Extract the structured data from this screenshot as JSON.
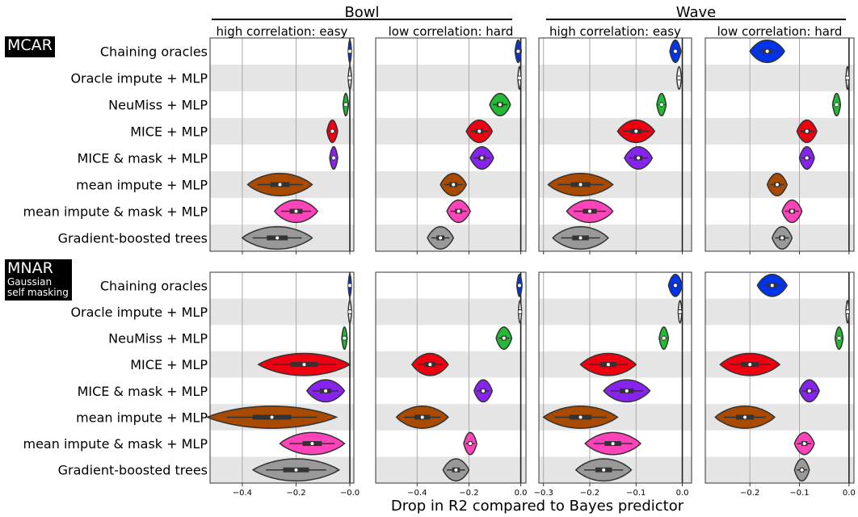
{
  "figure": {
    "xlabel": "Drop in R2 compared to Bayes predictor",
    "groups": [
      "Bowl",
      "Wave"
    ],
    "columns": [
      "high correlation: easy",
      "low correlation: hard",
      "high correlation: easy",
      "low correlation: hard"
    ],
    "rows": [
      "MCAR",
      "MNAR"
    ],
    "mnar_subtitle": [
      "Gaussian",
      "self masking"
    ]
  },
  "methods": [
    "Chaining oracles",
    "Oracle impute + MLP",
    "NeuMiss + MLP",
    "MICE + MLP",
    "MICE & mask + MLP",
    "mean impute + MLP",
    "mean impute & mask + MLP",
    "Gradient-boosted trees"
  ],
  "colors": [
    "#0033ee",
    "#ffffff",
    "#22bb33",
    "#ee0011",
    "#8822ee",
    "#a84a00",
    "#ff44bb",
    "#999999"
  ],
  "chart_data": [
    {
      "type": "violin",
      "row": "MCAR",
      "group": "Bowl",
      "subtitle": "high correlation: easy",
      "xlim": [
        -0.52,
        0.015
      ],
      "xticks": [
        -0.4,
        -0.2,
        -0.0
      ],
      "xticklabels": [
        "−0.4",
        "−0.2",
        "−0.0"
      ],
      "show_ticklabels": false,
      "series": [
        {
          "median": 0.0,
          "spread": 0.003
        },
        {
          "median": 0.0,
          "spread": 0.003
        },
        {
          "median": -0.015,
          "spread": 0.01
        },
        {
          "median": -0.065,
          "spread": 0.02
        },
        {
          "median": -0.06,
          "spread": 0.015
        },
        {
          "median": -0.26,
          "spread": 0.12
        },
        {
          "median": -0.2,
          "spread": 0.08
        },
        {
          "median": -0.27,
          "spread": 0.13
        }
      ]
    },
    {
      "type": "violin",
      "row": "MCAR",
      "group": "Bowl",
      "subtitle": "low correlation: hard",
      "xlim": [
        -0.56,
        0.02
      ],
      "xticks": [
        -0.4,
        -0.2,
        0.0
      ],
      "xticklabels": [
        "−0.4",
        "−0.2",
        "0.0"
      ],
      "show_ticklabels": false,
      "series": [
        {
          "median": -0.01,
          "spread": 0.012
        },
        {
          "median": -0.005,
          "spread": 0.005
        },
        {
          "median": -0.08,
          "spread": 0.04
        },
        {
          "median": -0.16,
          "spread": 0.05
        },
        {
          "median": -0.15,
          "spread": 0.045
        },
        {
          "median": -0.26,
          "spread": 0.05
        },
        {
          "median": -0.24,
          "spread": 0.045
        },
        {
          "median": -0.31,
          "spread": 0.05
        }
      ]
    },
    {
      "type": "violin",
      "row": "MCAR",
      "group": "Wave",
      "subtitle": "high correlation: easy",
      "xlim": [
        -0.31,
        0.02
      ],
      "xticks": [
        -0.3,
        -0.2,
        -0.1,
        0.0
      ],
      "xticklabels": [
        "−0.3",
        "−0.2",
        "−0.1",
        "0.0"
      ],
      "show_ticklabels": false,
      "series": [
        {
          "median": -0.015,
          "spread": 0.012
        },
        {
          "median": -0.007,
          "spread": 0.005
        },
        {
          "median": -0.045,
          "spread": 0.01
        },
        {
          "median": -0.1,
          "spread": 0.04
        },
        {
          "median": -0.095,
          "spread": 0.03
        },
        {
          "median": -0.22,
          "spread": 0.07
        },
        {
          "median": -0.2,
          "spread": 0.05
        },
        {
          "median": -0.22,
          "spread": 0.06
        }
      ]
    },
    {
      "type": "violin",
      "row": "MCAR",
      "group": "Wave",
      "subtitle": "low correlation: hard",
      "xlim": [
        -0.29,
        0.01
      ],
      "xticks": [
        -0.2,
        -0.1,
        0.0
      ],
      "xticklabels": [
        "−0.2",
        "−0.1",
        "0.0"
      ],
      "show_ticklabels": false,
      "series": [
        {
          "median": -0.165,
          "spread": 0.035
        },
        {
          "median": -0.003,
          "spread": 0.003
        },
        {
          "median": -0.025,
          "spread": 0.008
        },
        {
          "median": -0.085,
          "spread": 0.02
        },
        {
          "median": -0.085,
          "spread": 0.015
        },
        {
          "median": -0.145,
          "spread": 0.02
        },
        {
          "median": -0.115,
          "spread": 0.02
        },
        {
          "median": -0.135,
          "spread": 0.02
        }
      ]
    },
    {
      "type": "violin",
      "row": "MNAR",
      "group": "Bowl",
      "subtitle": "",
      "xlim": [
        -0.52,
        0.015
      ],
      "xticks": [
        -0.4,
        -0.2,
        -0.0
      ],
      "xticklabels": [
        "−0.4",
        "−0.2",
        "−0.0"
      ],
      "show_ticklabels": true,
      "series": [
        {
          "median": 0.0,
          "spread": 0.003
        },
        {
          "median": 0.0,
          "spread": 0.003
        },
        {
          "median": -0.02,
          "spread": 0.01
        },
        {
          "median": -0.17,
          "spread": 0.17
        },
        {
          "median": -0.09,
          "spread": 0.07
        },
        {
          "median": -0.29,
          "spread": 0.24
        },
        {
          "median": -0.14,
          "spread": 0.12
        },
        {
          "median": -0.2,
          "spread": 0.16
        }
      ]
    },
    {
      "type": "violin",
      "row": "MNAR",
      "group": "Bowl",
      "subtitle": "",
      "xlim": [
        -0.56,
        0.02
      ],
      "xticks": [
        -0.4,
        -0.2,
        0.0
      ],
      "xticklabels": [
        "−0.4",
        "−0.2",
        "0.0"
      ],
      "show_ticklabels": true,
      "series": [
        {
          "median": -0.005,
          "spread": 0.01
        },
        {
          "median": -0.003,
          "spread": 0.005
        },
        {
          "median": -0.065,
          "spread": 0.03
        },
        {
          "median": -0.35,
          "spread": 0.07
        },
        {
          "median": -0.145,
          "spread": 0.035
        },
        {
          "median": -0.38,
          "spread": 0.1
        },
        {
          "median": -0.195,
          "spread": 0.025
        },
        {
          "median": -0.25,
          "spread": 0.05
        }
      ]
    },
    {
      "type": "violin",
      "row": "MNAR",
      "group": "Wave",
      "subtitle": "",
      "xlim": [
        -0.31,
        0.02
      ],
      "xticks": [
        -0.3,
        -0.2,
        -0.1,
        0.0
      ],
      "xticklabels": [
        "−0.3",
        "−0.2",
        "−0.1",
        "0.0"
      ],
      "show_ticklabels": true,
      "series": [
        {
          "median": -0.015,
          "spread": 0.015
        },
        {
          "median": -0.005,
          "spread": 0.004
        },
        {
          "median": -0.04,
          "spread": 0.01
        },
        {
          "median": -0.16,
          "spread": 0.06
        },
        {
          "median": -0.12,
          "spread": 0.05
        },
        {
          "median": -0.22,
          "spread": 0.08
        },
        {
          "median": -0.15,
          "spread": 0.06
        },
        {
          "median": -0.17,
          "spread": 0.06
        }
      ]
    },
    {
      "type": "violin",
      "row": "MNAR",
      "group": "Wave",
      "subtitle": "",
      "xlim": [
        -0.29,
        0.01
      ],
      "xticks": [
        -0.2,
        -0.1,
        0.0
      ],
      "xticklabels": [
        "−0.2",
        "−0.1",
        "0.0"
      ],
      "show_ticklabels": true,
      "series": [
        {
          "median": -0.155,
          "spread": 0.03
        },
        {
          "median": -0.003,
          "spread": 0.003
        },
        {
          "median": -0.02,
          "spread": 0.008
        },
        {
          "median": -0.2,
          "spread": 0.06
        },
        {
          "median": -0.08,
          "spread": 0.02
        },
        {
          "median": -0.21,
          "spread": 0.06
        },
        {
          "median": -0.09,
          "spread": 0.02
        },
        {
          "median": -0.095,
          "spread": 0.015
        }
      ]
    }
  ]
}
